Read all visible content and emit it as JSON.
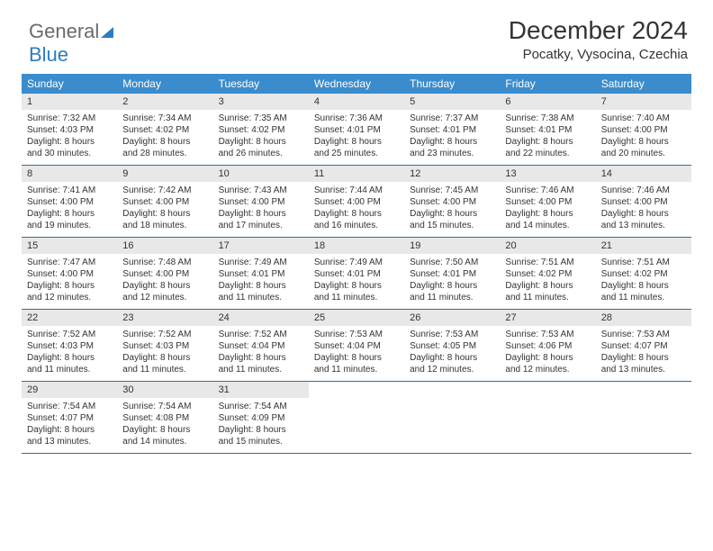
{
  "logo": {
    "text1": "General",
    "text2": "Blue"
  },
  "header": {
    "month_title": "December 2024",
    "location": "Pocatky, Vysocina, Czechia"
  },
  "colors": {
    "header_bg": "#3b8ccc",
    "header_text": "#ffffff",
    "date_bg": "#e8e8e8",
    "week_border": "#2d6fa3",
    "text": "#333333"
  },
  "day_names": [
    "Sunday",
    "Monday",
    "Tuesday",
    "Wednesday",
    "Thursday",
    "Friday",
    "Saturday"
  ],
  "weeks": [
    [
      {
        "d": "1",
        "sr": "Sunrise: 7:32 AM",
        "ss": "Sunset: 4:03 PM",
        "dl1": "Daylight: 8 hours",
        "dl2": "and 30 minutes."
      },
      {
        "d": "2",
        "sr": "Sunrise: 7:34 AM",
        "ss": "Sunset: 4:02 PM",
        "dl1": "Daylight: 8 hours",
        "dl2": "and 28 minutes."
      },
      {
        "d": "3",
        "sr": "Sunrise: 7:35 AM",
        "ss": "Sunset: 4:02 PM",
        "dl1": "Daylight: 8 hours",
        "dl2": "and 26 minutes."
      },
      {
        "d": "4",
        "sr": "Sunrise: 7:36 AM",
        "ss": "Sunset: 4:01 PM",
        "dl1": "Daylight: 8 hours",
        "dl2": "and 25 minutes."
      },
      {
        "d": "5",
        "sr": "Sunrise: 7:37 AM",
        "ss": "Sunset: 4:01 PM",
        "dl1": "Daylight: 8 hours",
        "dl2": "and 23 minutes."
      },
      {
        "d": "6",
        "sr": "Sunrise: 7:38 AM",
        "ss": "Sunset: 4:01 PM",
        "dl1": "Daylight: 8 hours",
        "dl2": "and 22 minutes."
      },
      {
        "d": "7",
        "sr": "Sunrise: 7:40 AM",
        "ss": "Sunset: 4:00 PM",
        "dl1": "Daylight: 8 hours",
        "dl2": "and 20 minutes."
      }
    ],
    [
      {
        "d": "8",
        "sr": "Sunrise: 7:41 AM",
        "ss": "Sunset: 4:00 PM",
        "dl1": "Daylight: 8 hours",
        "dl2": "and 19 minutes."
      },
      {
        "d": "9",
        "sr": "Sunrise: 7:42 AM",
        "ss": "Sunset: 4:00 PM",
        "dl1": "Daylight: 8 hours",
        "dl2": "and 18 minutes."
      },
      {
        "d": "10",
        "sr": "Sunrise: 7:43 AM",
        "ss": "Sunset: 4:00 PM",
        "dl1": "Daylight: 8 hours",
        "dl2": "and 17 minutes."
      },
      {
        "d": "11",
        "sr": "Sunrise: 7:44 AM",
        "ss": "Sunset: 4:00 PM",
        "dl1": "Daylight: 8 hours",
        "dl2": "and 16 minutes."
      },
      {
        "d": "12",
        "sr": "Sunrise: 7:45 AM",
        "ss": "Sunset: 4:00 PM",
        "dl1": "Daylight: 8 hours",
        "dl2": "and 15 minutes."
      },
      {
        "d": "13",
        "sr": "Sunrise: 7:46 AM",
        "ss": "Sunset: 4:00 PM",
        "dl1": "Daylight: 8 hours",
        "dl2": "and 14 minutes."
      },
      {
        "d": "14",
        "sr": "Sunrise: 7:46 AM",
        "ss": "Sunset: 4:00 PM",
        "dl1": "Daylight: 8 hours",
        "dl2": "and 13 minutes."
      }
    ],
    [
      {
        "d": "15",
        "sr": "Sunrise: 7:47 AM",
        "ss": "Sunset: 4:00 PM",
        "dl1": "Daylight: 8 hours",
        "dl2": "and 12 minutes."
      },
      {
        "d": "16",
        "sr": "Sunrise: 7:48 AM",
        "ss": "Sunset: 4:00 PM",
        "dl1": "Daylight: 8 hours",
        "dl2": "and 12 minutes."
      },
      {
        "d": "17",
        "sr": "Sunrise: 7:49 AM",
        "ss": "Sunset: 4:01 PM",
        "dl1": "Daylight: 8 hours",
        "dl2": "and 11 minutes."
      },
      {
        "d": "18",
        "sr": "Sunrise: 7:49 AM",
        "ss": "Sunset: 4:01 PM",
        "dl1": "Daylight: 8 hours",
        "dl2": "and 11 minutes."
      },
      {
        "d": "19",
        "sr": "Sunrise: 7:50 AM",
        "ss": "Sunset: 4:01 PM",
        "dl1": "Daylight: 8 hours",
        "dl2": "and 11 minutes."
      },
      {
        "d": "20",
        "sr": "Sunrise: 7:51 AM",
        "ss": "Sunset: 4:02 PM",
        "dl1": "Daylight: 8 hours",
        "dl2": "and 11 minutes."
      },
      {
        "d": "21",
        "sr": "Sunrise: 7:51 AM",
        "ss": "Sunset: 4:02 PM",
        "dl1": "Daylight: 8 hours",
        "dl2": "and 11 minutes."
      }
    ],
    [
      {
        "d": "22",
        "sr": "Sunrise: 7:52 AM",
        "ss": "Sunset: 4:03 PM",
        "dl1": "Daylight: 8 hours",
        "dl2": "and 11 minutes."
      },
      {
        "d": "23",
        "sr": "Sunrise: 7:52 AM",
        "ss": "Sunset: 4:03 PM",
        "dl1": "Daylight: 8 hours",
        "dl2": "and 11 minutes."
      },
      {
        "d": "24",
        "sr": "Sunrise: 7:52 AM",
        "ss": "Sunset: 4:04 PM",
        "dl1": "Daylight: 8 hours",
        "dl2": "and 11 minutes."
      },
      {
        "d": "25",
        "sr": "Sunrise: 7:53 AM",
        "ss": "Sunset: 4:04 PM",
        "dl1": "Daylight: 8 hours",
        "dl2": "and 11 minutes."
      },
      {
        "d": "26",
        "sr": "Sunrise: 7:53 AM",
        "ss": "Sunset: 4:05 PM",
        "dl1": "Daylight: 8 hours",
        "dl2": "and 12 minutes."
      },
      {
        "d": "27",
        "sr": "Sunrise: 7:53 AM",
        "ss": "Sunset: 4:06 PM",
        "dl1": "Daylight: 8 hours",
        "dl2": "and 12 minutes."
      },
      {
        "d": "28",
        "sr": "Sunrise: 7:53 AM",
        "ss": "Sunset: 4:07 PM",
        "dl1": "Daylight: 8 hours",
        "dl2": "and 13 minutes."
      }
    ],
    [
      {
        "d": "29",
        "sr": "Sunrise: 7:54 AM",
        "ss": "Sunset: 4:07 PM",
        "dl1": "Daylight: 8 hours",
        "dl2": "and 13 minutes."
      },
      {
        "d": "30",
        "sr": "Sunrise: 7:54 AM",
        "ss": "Sunset: 4:08 PM",
        "dl1": "Daylight: 8 hours",
        "dl2": "and 14 minutes."
      },
      {
        "d": "31",
        "sr": "Sunrise: 7:54 AM",
        "ss": "Sunset: 4:09 PM",
        "dl1": "Daylight: 8 hours",
        "dl2": "and 15 minutes."
      },
      {
        "empty": true
      },
      {
        "empty": true
      },
      {
        "empty": true
      },
      {
        "empty": true
      }
    ]
  ]
}
